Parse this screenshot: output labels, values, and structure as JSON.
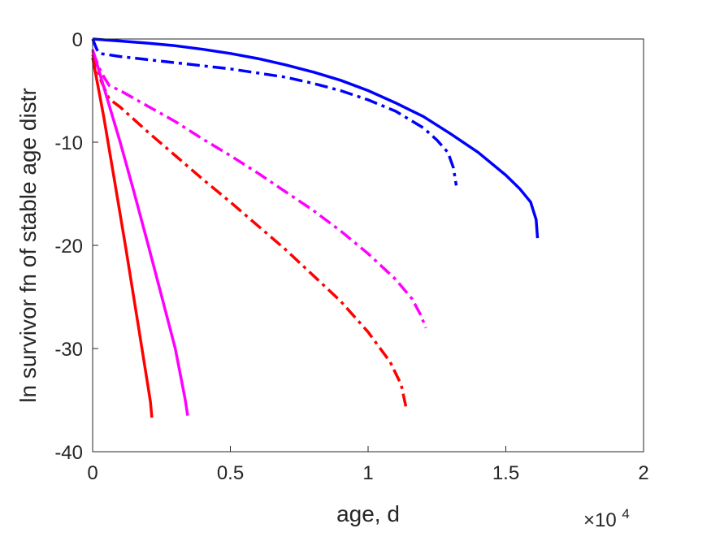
{
  "chart_data": {
    "type": "line",
    "xlabel": "age, d",
    "ylabel": "ln survivor fn of stable age distr",
    "x_exponent_label": "×10",
    "x_exponent_power": "4",
    "xlim": [
      0,
      20000
    ],
    "ylim": [
      -40,
      0
    ],
    "xticks": [
      0,
      5000,
      10000,
      15000,
      20000
    ],
    "xtick_labels": [
      "0",
      "0.5",
      "1",
      "1.5",
      "2"
    ],
    "yticks": [
      0,
      -10,
      -20,
      -30,
      -40
    ],
    "ytick_labels": [
      "0",
      "-10",
      "-20",
      "-30",
      "-40"
    ],
    "grid": false,
    "series": [
      {
        "color": "#0000ff",
        "style": "solid",
        "x": [
          0,
          1000,
          2000,
          3000,
          4000,
          5000,
          6000,
          7000,
          8000,
          9000,
          10000,
          11000,
          12000,
          13000,
          14000,
          15000,
          15500,
          15900,
          16100,
          16150
        ],
        "y": [
          0,
          -0.2,
          -0.4,
          -0.65,
          -1.0,
          -1.4,
          -1.9,
          -2.5,
          -3.2,
          -4.0,
          -5.0,
          -6.2,
          -7.5,
          -9.2,
          -11.0,
          -13.2,
          -14.5,
          -15.8,
          -17.5,
          -19.3
        ]
      },
      {
        "color": "#0000ff",
        "style": "dashdot",
        "x": [
          0,
          150,
          250,
          500,
          1000,
          2000,
          3000,
          4000,
          5000,
          6000,
          7000,
          8000,
          9000,
          10000,
          11000,
          12000,
          12500,
          12900,
          13100,
          13200
        ],
        "y": [
          0,
          -1.0,
          -1.4,
          -1.5,
          -1.7,
          -2.0,
          -2.3,
          -2.6,
          -2.9,
          -3.3,
          -3.7,
          -4.3,
          -5.0,
          -5.9,
          -7.0,
          -8.6,
          -9.8,
          -11.0,
          -12.5,
          -14.2
        ]
      },
      {
        "color": "#ff00ff",
        "style": "dashdot",
        "x": [
          0,
          300,
          600,
          1000,
          2000,
          3000,
          4000,
          5000,
          6000,
          7000,
          8000,
          9000,
          10000,
          11000,
          11600,
          11900,
          12100
        ],
        "y": [
          -1.2,
          -3.2,
          -4.5,
          -5.0,
          -6.5,
          -8.0,
          -9.7,
          -11.3,
          -13.0,
          -14.8,
          -16.6,
          -18.6,
          -20.8,
          -23.3,
          -25.2,
          -26.7,
          -28.0
        ]
      },
      {
        "color": "#ff0000",
        "style": "dashdot",
        "x": [
          0,
          300,
          600,
          1000,
          2000,
          3000,
          4000,
          5000,
          6000,
          7000,
          8000,
          9000,
          10000,
          10800,
          11200,
          11400
        ],
        "y": [
          -1.5,
          -4.0,
          -5.8,
          -6.6,
          -9.0,
          -11.3,
          -13.6,
          -15.8,
          -18.1,
          -20.4,
          -22.9,
          -25.4,
          -28.4,
          -31.3,
          -33.5,
          -36.0
        ]
      },
      {
        "color": "#ff00ff",
        "style": "solid",
        "x": [
          0,
          500,
          1000,
          1500,
          2000,
          2500,
          3000,
          3350,
          3450
        ],
        "y": [
          -1.0,
          -5.5,
          -10.0,
          -14.8,
          -19.8,
          -24.9,
          -30.0,
          -34.8,
          -36.5
        ]
      },
      {
        "color": "#ff0000",
        "style": "solid",
        "x": [
          0,
          400,
          800,
          1200,
          1600,
          2000,
          2100,
          2150
        ],
        "y": [
          -1.8,
          -7.5,
          -13.8,
          -20.2,
          -26.8,
          -33.5,
          -35.2,
          -36.7
        ]
      }
    ]
  }
}
